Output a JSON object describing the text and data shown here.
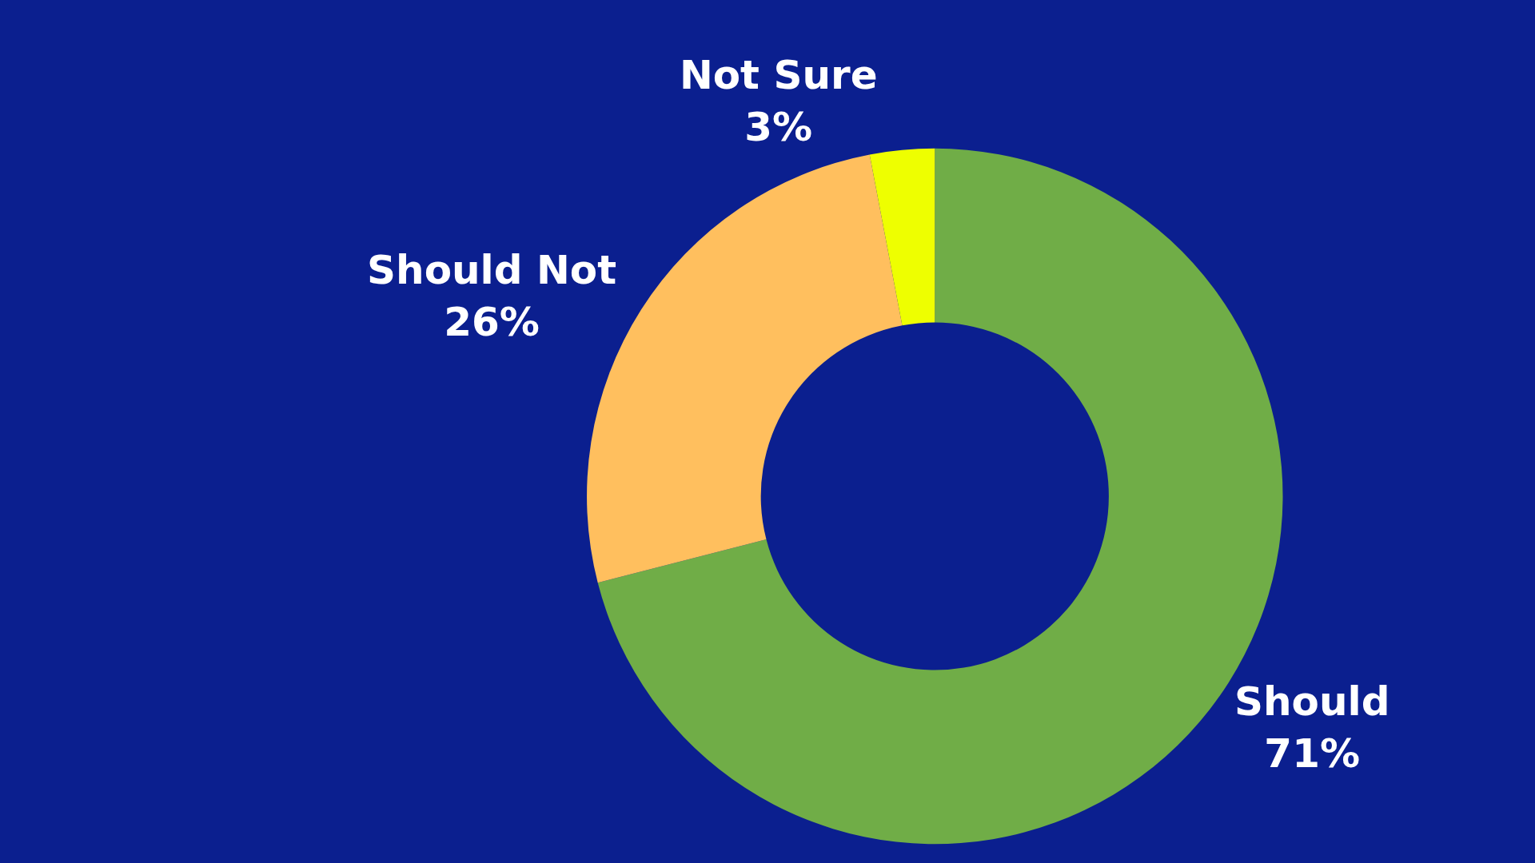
{
  "chart_data": {
    "type": "donut",
    "categories": [
      "Should",
      "Should Not",
      "Not Sure"
    ],
    "values": [
      71,
      26,
      3
    ],
    "value_labels": [
      "71%",
      "26%",
      "3%"
    ],
    "colors": [
      "#70ad47",
      "#ffbf5e",
      "#eeff00"
    ],
    "legend": false
  }
}
